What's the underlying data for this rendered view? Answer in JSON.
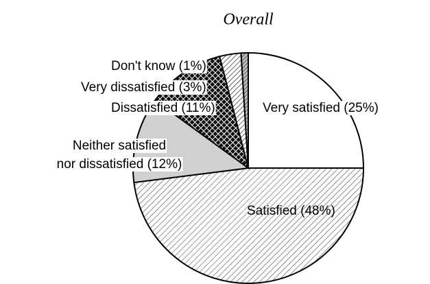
{
  "chart_data": {
    "type": "pie",
    "title": "Overall",
    "labels": [
      [
        "Very satisfied (25%)"
      ],
      [
        "Satisfied (48%)"
      ],
      [
        "Neither satisfied",
        "nor dissatisfied (12%)"
      ],
      [
        "Dissatisfied (11%)"
      ],
      [
        "Very dissatisfied (3%)"
      ],
      [
        "Don't know (1%)"
      ]
    ],
    "values": [
      25,
      48,
      12,
      11,
      3,
      1
    ],
    "colors": [
      "#ffffff",
      "url(#hatch)",
      "#d0d0d0",
      "url(#cross)",
      "url(#hatch2)",
      "url(#hatch3)"
    ]
  }
}
